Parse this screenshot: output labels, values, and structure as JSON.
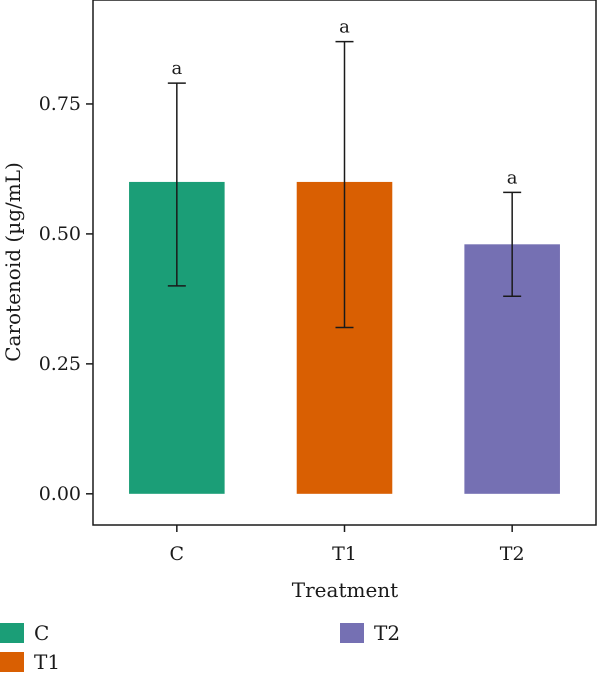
{
  "chart_data": {
    "type": "bar",
    "categories": [
      "C",
      "T1",
      "T2"
    ],
    "values": [
      0.6,
      0.6,
      0.48
    ],
    "error_low": [
      0.4,
      0.32,
      0.38
    ],
    "error_high": [
      0.79,
      0.87,
      0.58
    ],
    "significance": [
      "a",
      "a",
      "a"
    ],
    "colors": [
      "#1b9e77",
      "#d95f02",
      "#7570b3"
    ],
    "xlabel": "Treatment",
    "ylabel": "Carotenoid (µg/mL)",
    "ylim": [
      -0.06,
      0.95
    ],
    "yticks": [
      0.0,
      0.25,
      0.5,
      0.75
    ],
    "ytick_labels": [
      "0.00",
      "0.25",
      "0.50",
      "0.75"
    ],
    "grid": false,
    "legend": {
      "placement": "bottom",
      "entries": [
        "C",
        "T1",
        "T2"
      ]
    }
  }
}
